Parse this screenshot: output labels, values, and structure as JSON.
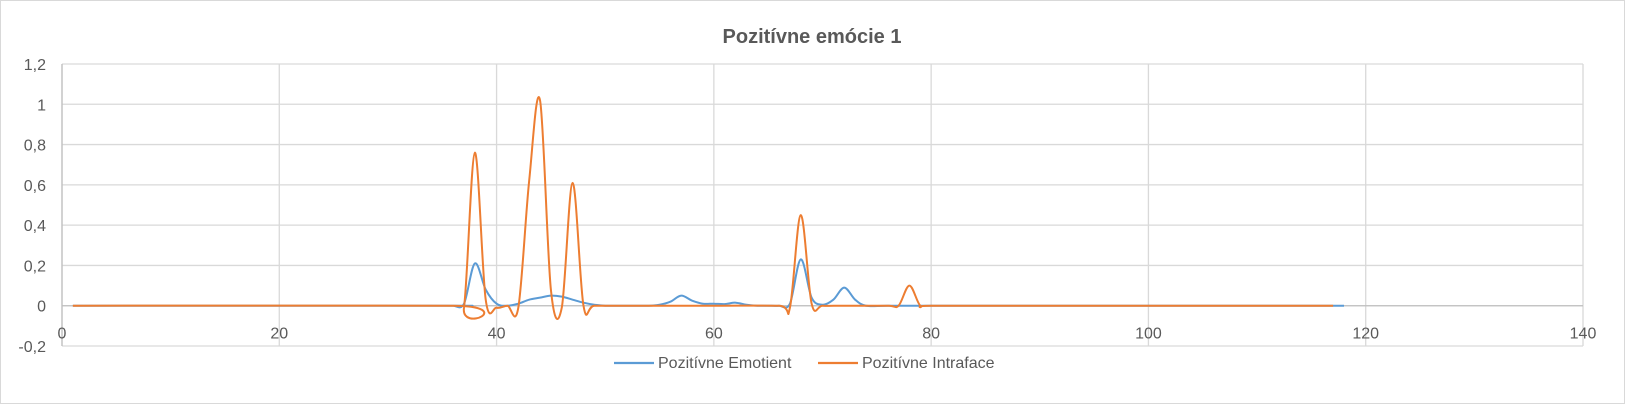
{
  "chart_data": {
    "type": "line",
    "title": "Pozitívne emócie 1",
    "xlim": [
      0,
      140
    ],
    "ylim": [
      -0.2,
      1.2
    ],
    "x_ticks": [
      "0",
      "20",
      "40",
      "60",
      "80",
      "100",
      "120",
      "140"
    ],
    "y_ticks": [
      "-0,2",
      "0",
      "0,2",
      "0,4",
      "0,6",
      "0,8",
      "1",
      "1,2"
    ],
    "grid": true,
    "legend_position": "bottom",
    "series": [
      {
        "name": "Pozitívne Emotient",
        "color": "#5b9bd5",
        "points": [
          [
            1,
            0
          ],
          [
            35,
            0
          ],
          [
            36,
            0
          ],
          [
            37,
            0.01
          ],
          [
            38,
            0.21
          ],
          [
            39,
            0.08
          ],
          [
            40,
            0.01
          ],
          [
            41,
            0
          ],
          [
            42,
            0.01
          ],
          [
            43,
            0.03
          ],
          [
            44,
            0.04
          ],
          [
            45,
            0.05
          ],
          [
            46,
            0.045
          ],
          [
            47,
            0.03
          ],
          [
            48,
            0.015
          ],
          [
            49,
            0.005
          ],
          [
            50,
            0
          ],
          [
            52,
            0
          ],
          [
            54,
            0
          ],
          [
            55,
            0.005
          ],
          [
            56,
            0.02
          ],
          [
            57,
            0.05
          ],
          [
            58,
            0.025
          ],
          [
            59,
            0.01
          ],
          [
            60,
            0.01
          ],
          [
            61,
            0.008
          ],
          [
            62,
            0.015
          ],
          [
            63,
            0.005
          ],
          [
            64,
            0
          ],
          [
            65,
            0
          ],
          [
            66,
            0
          ],
          [
            67,
            0.01
          ],
          [
            68,
            0.23
          ],
          [
            69,
            0.04
          ],
          [
            70,
            0.005
          ],
          [
            71,
            0.03
          ],
          [
            72,
            0.09
          ],
          [
            73,
            0.03
          ],
          [
            74,
            0
          ],
          [
            76,
            0
          ],
          [
            80,
            0
          ],
          [
            90,
            0
          ],
          [
            100,
            0
          ],
          [
            110,
            0
          ],
          [
            118,
            0
          ]
        ]
      },
      {
        "name": "Pozitívne Intraface",
        "color": "#ed7d31",
        "points": [
          [
            1,
            0
          ],
          [
            36,
            0
          ],
          [
            37,
            -0.01
          ],
          [
            38,
            0.76
          ],
          [
            39,
            0.03
          ],
          [
            40,
            -0.01
          ],
          [
            41,
            0
          ],
          [
            42,
            -0.01
          ],
          [
            43,
            0.62
          ],
          [
            44,
            1.02
          ],
          [
            45,
            0.08
          ],
          [
            46,
            -0.01
          ],
          [
            47,
            0.61
          ],
          [
            48,
            0
          ],
          [
            49,
            0
          ],
          [
            52,
            0
          ],
          [
            60,
            0
          ],
          [
            66,
            0
          ],
          [
            67,
            -0.01
          ],
          [
            68,
            0.45
          ],
          [
            69,
            0.01
          ],
          [
            70,
            0
          ],
          [
            72,
            0
          ],
          [
            76,
            0
          ],
          [
            77,
            0
          ],
          [
            78,
            0.1
          ],
          [
            79,
            0
          ],
          [
            80,
            0
          ],
          [
            90,
            0
          ],
          [
            100,
            0
          ],
          [
            110,
            0
          ],
          [
            117,
            0
          ]
        ]
      }
    ]
  }
}
